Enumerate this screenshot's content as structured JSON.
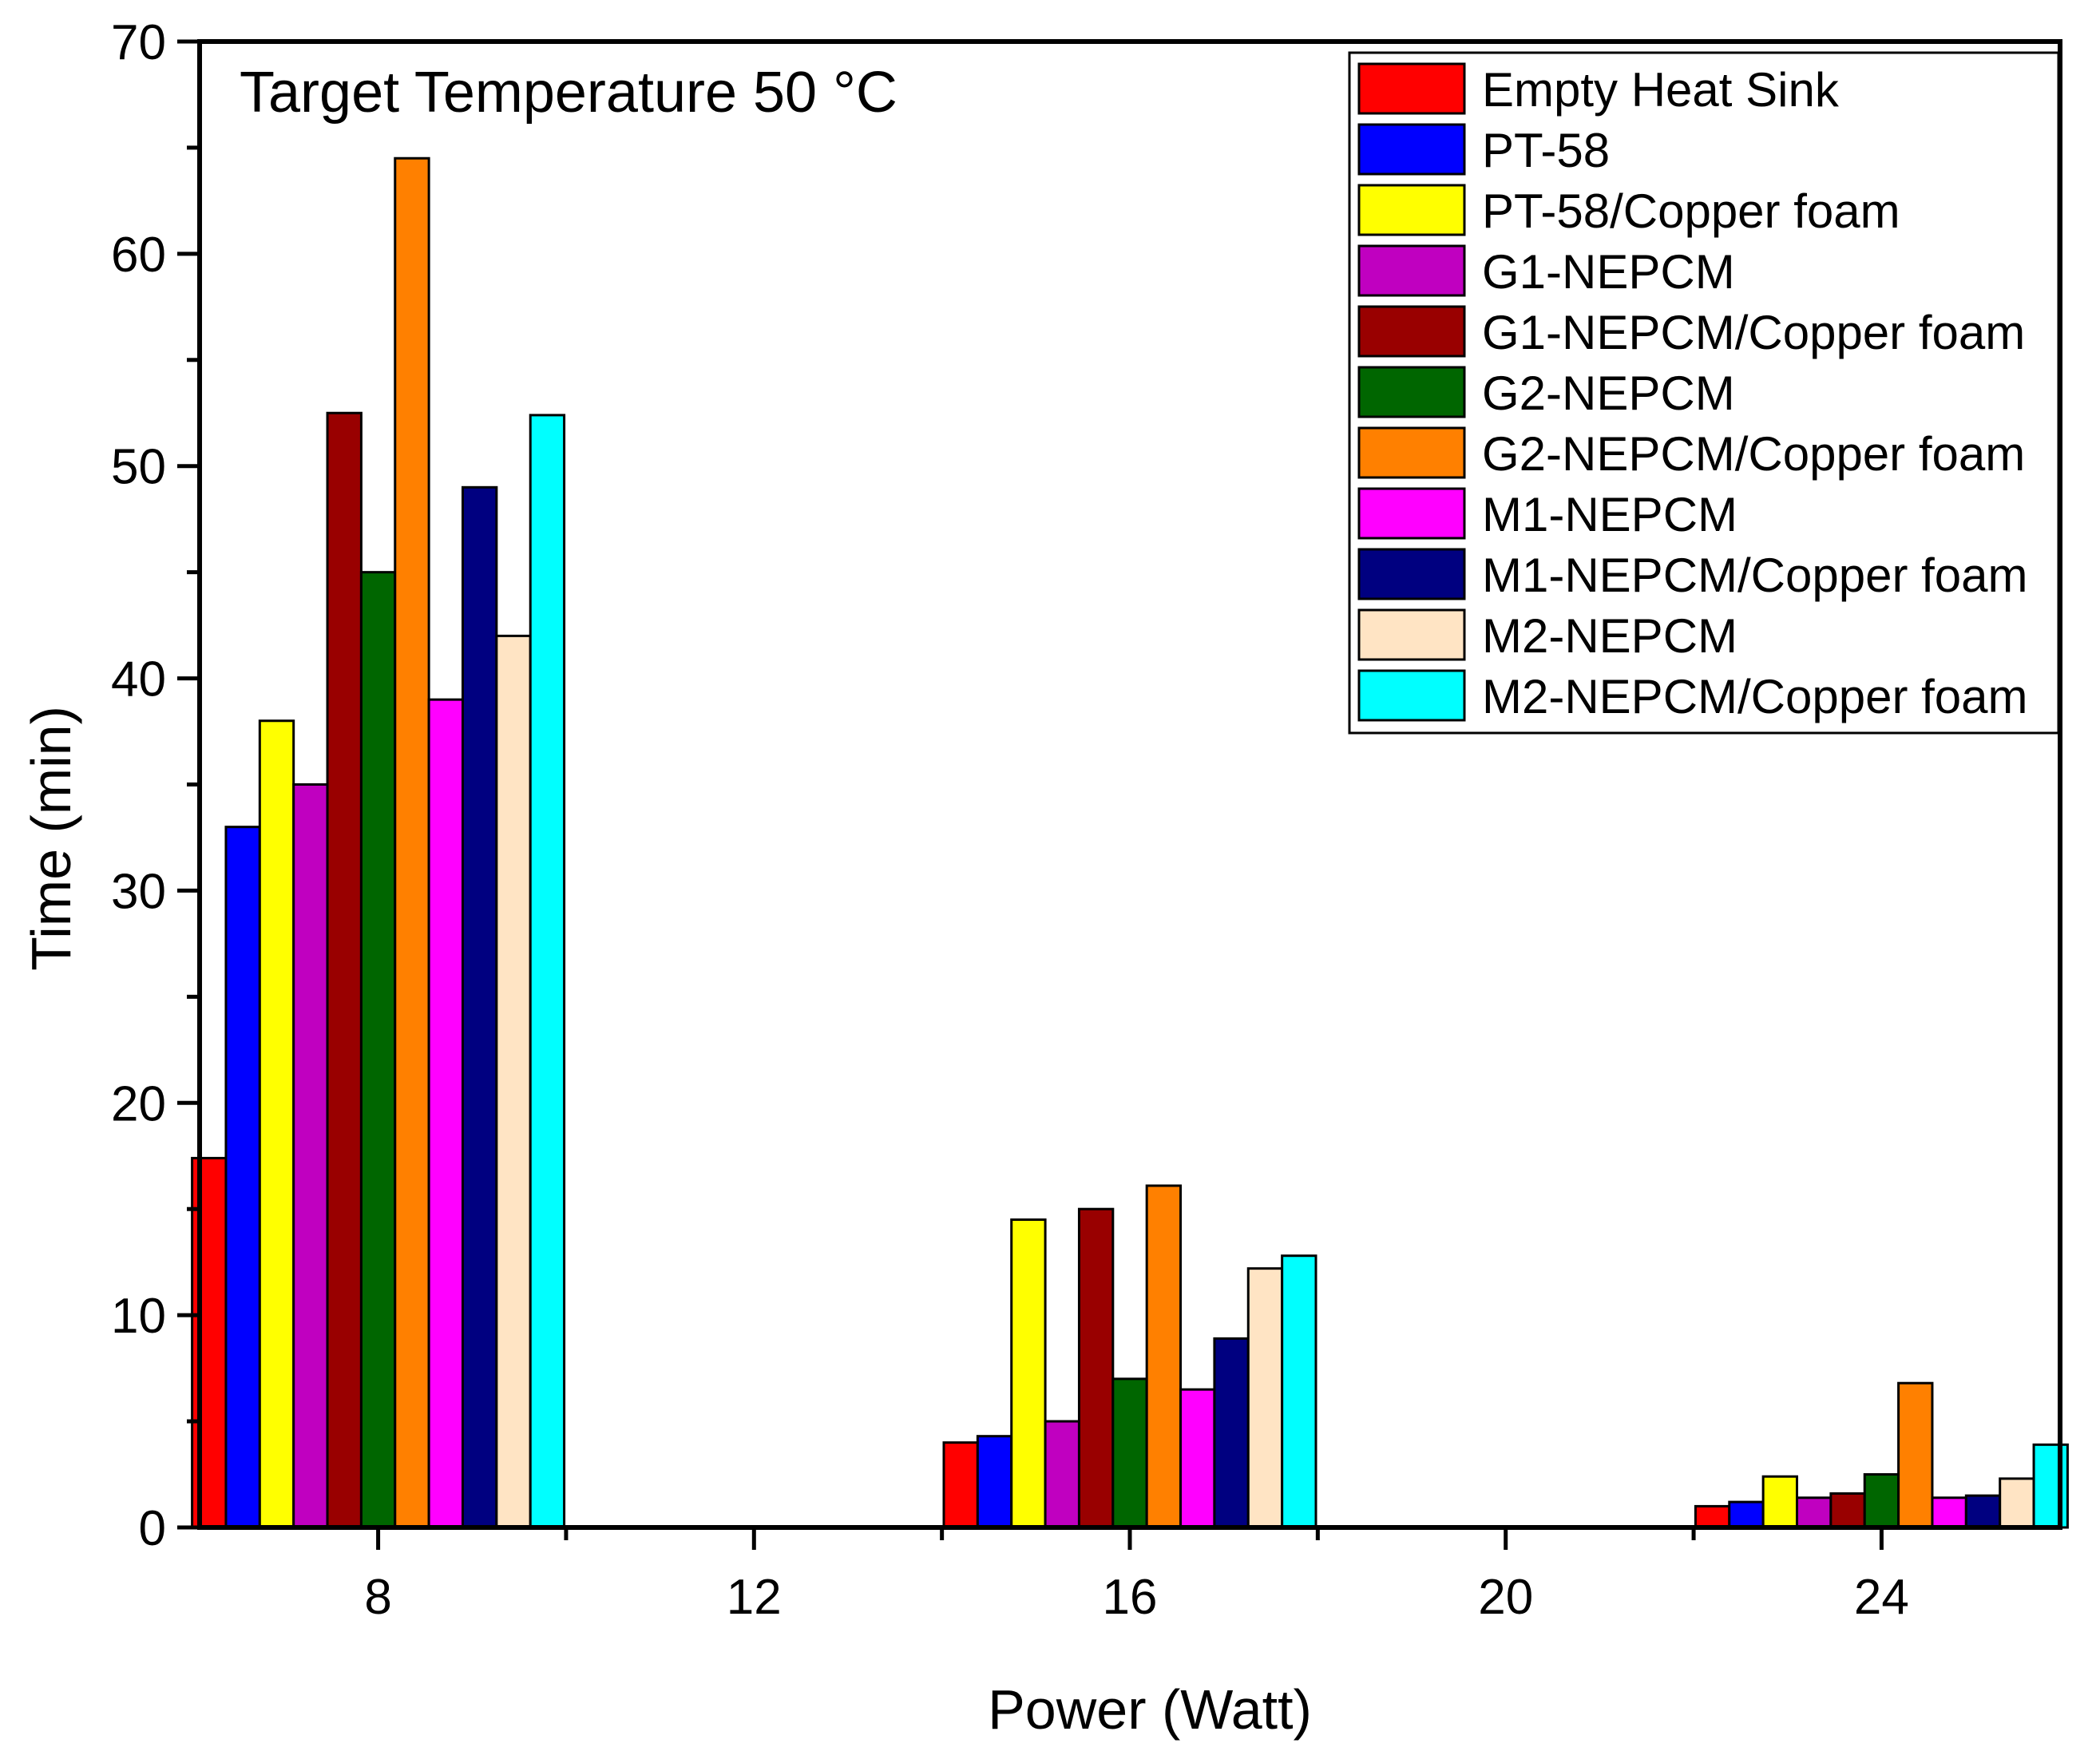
{
  "chart_data": {
    "type": "bar",
    "annotation": "Target Temperature 50 °C",
    "xlabel": "Power (Watt)",
    "ylabel": "Time (min)",
    "xlim": [
      6.1,
      25.9
    ],
    "ylim": [
      0,
      70
    ],
    "x_ticks": [
      8,
      12,
      16,
      20,
      24
    ],
    "y_ticks": [
      0,
      10,
      20,
      30,
      40,
      50,
      60,
      70
    ],
    "y_minor_step": 5,
    "bar_width_data": 0.36,
    "legend_position": "top-right",
    "categories": [
      8,
      16,
      24
    ],
    "series": [
      {
        "name": "Empty Heat Sink",
        "color": "#ff0000",
        "values": [
          17.4,
          4.0,
          1.0
        ]
      },
      {
        "name": "PT-58",
        "color": "#0000ff",
        "values": [
          33.0,
          4.3,
          1.2
        ]
      },
      {
        "name": "PT-58/Copper foam",
        "color": "#ffff00",
        "values": [
          38.0,
          14.5,
          2.4
        ]
      },
      {
        "name": "G1-NEPCM",
        "color": "#c000c0",
        "values": [
          35.0,
          5.0,
          1.4
        ]
      },
      {
        "name": "G1-NEPCM/Copper foam",
        "color": "#990000",
        "values": [
          52.5,
          15.0,
          1.6
        ]
      },
      {
        "name": "G2-NEPCM",
        "color": "#006600",
        "values": [
          45.0,
          7.0,
          2.5
        ]
      },
      {
        "name": "G2-NEPCM/Copper foam",
        "color": "#ff8000",
        "values": [
          64.5,
          16.1,
          6.8
        ]
      },
      {
        "name": "M1-NEPCM",
        "color": "#ff00ff",
        "values": [
          39.0,
          6.5,
          1.4
        ]
      },
      {
        "name": "M1-NEPCM/Copper foam",
        "color": "#000080",
        "values": [
          49.0,
          8.9,
          1.5
        ]
      },
      {
        "name": "M2-NEPCM",
        "color": "#ffe4c4",
        "values": [
          42.0,
          12.2,
          2.3
        ]
      },
      {
        "name": "M2-NEPCM/Copper foam",
        "color": "#00ffff",
        "values": [
          52.4,
          12.8,
          3.9
        ]
      }
    ]
  }
}
